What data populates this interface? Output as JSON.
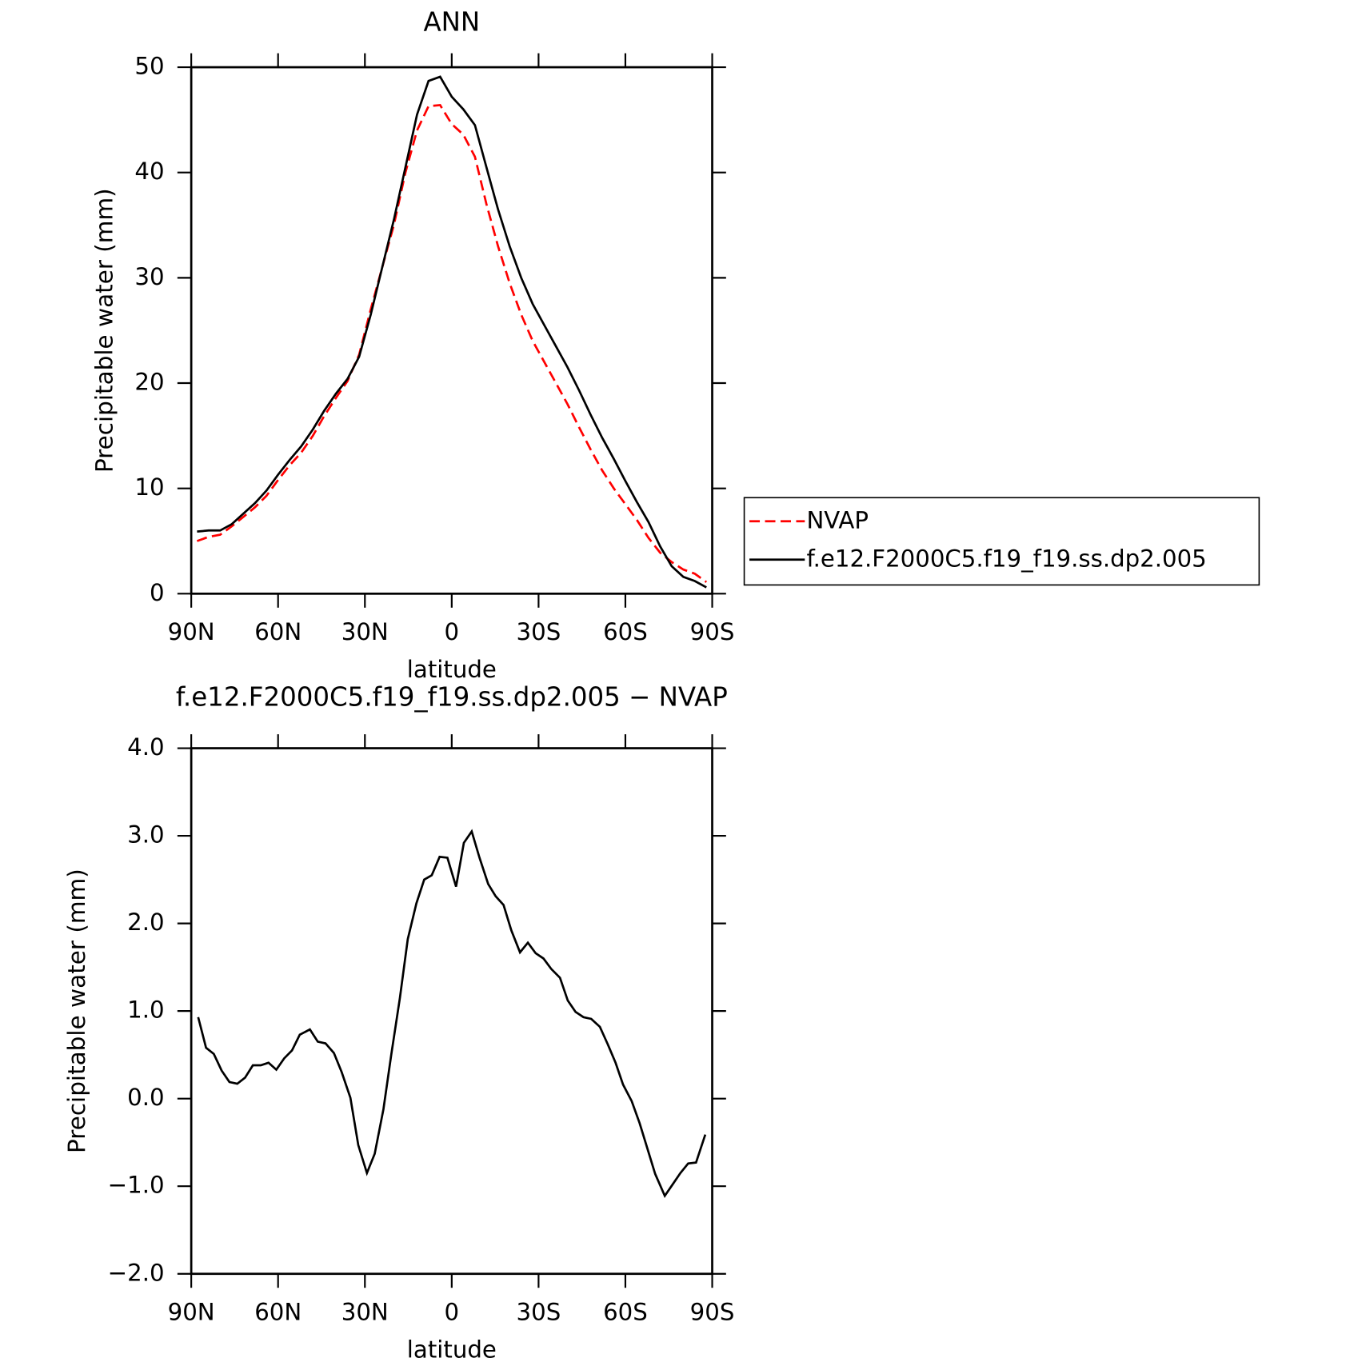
{
  "chart_data": [
    {
      "type": "line",
      "title": "ANN",
      "xlabel": "latitude",
      "ylabel": "Precipitable water (mm)",
      "x": [
        88,
        84,
        80,
        76,
        72,
        68,
        64,
        60,
        56,
        52,
        48,
        44,
        40,
        36,
        32,
        28,
        24,
        20,
        16,
        12,
        8,
        4,
        0,
        -4,
        -8,
        -12,
        -16,
        -20,
        -24,
        -28,
        -32,
        -36,
        -40,
        -44,
        -48,
        -52,
        -56,
        -60,
        -64,
        -68,
        -72,
        -76,
        -80,
        -84,
        -88
      ],
      "series": [
        {
          "name": "NVAP",
          "color": "#ff0000",
          "dash": true,
          "values": [
            5.0,
            5.4,
            5.6,
            6.4,
            7.3,
            8.2,
            9.3,
            10.8,
            12.2,
            13.4,
            15.0,
            16.9,
            18.6,
            20.2,
            22.7,
            27,
            31,
            35,
            40,
            44,
            46.3,
            46.4,
            44.6,
            43.6,
            41.5,
            37,
            33,
            29.5,
            26.5,
            24,
            22,
            20,
            18,
            15.8,
            13.7,
            11.7,
            10,
            8.5,
            7,
            5.3,
            3.9,
            3.0,
            2.3,
            1.9,
            1.1
          ]
        },
        {
          "name": "f.e12.F2000C5.f19_f19.ss.dp2.005",
          "color": "#000000",
          "dash": false,
          "values": [
            5.9,
            6.0,
            6.0,
            6.6,
            7.6,
            8.6,
            9.8,
            11.3,
            12.7,
            14.0,
            15.6,
            17.4,
            19.0,
            20.4,
            22.5,
            26.5,
            31,
            35.5,
            40.5,
            45.5,
            48.7,
            49.1,
            47.2,
            46.0,
            44.5,
            40.5,
            36.5,
            33,
            30,
            27.5,
            25.5,
            23.5,
            21.5,
            19.3,
            17,
            14.8,
            12.8,
            10.7,
            8.7,
            6.8,
            4.5,
            2.6,
            1.6,
            1.2,
            0.6
          ]
        }
      ],
      "xlim": [
        90,
        -90
      ],
      "xticks": [
        {
          "value": 90,
          "label": "90N"
        },
        {
          "value": 60,
          "label": "60N"
        },
        {
          "value": 30,
          "label": "30N"
        },
        0,
        {
          "value": -30,
          "label": "30S"
        },
        {
          "value": -60,
          "label": "60S"
        },
        {
          "value": -90,
          "label": "90S"
        }
      ],
      "ylim": [
        0,
        50
      ],
      "yticks": [
        0,
        10,
        20,
        30,
        40,
        50
      ],
      "legend": "right"
    },
    {
      "type": "line",
      "title": "f.e12.F2000C5.f19_f19.ss.dp2.005 − NVAP",
      "xlabel": "latitude",
      "ylabel": "Precipitable water (mm)",
      "x": [
        87.6,
        84.9,
        82.2,
        79.5,
        76.8,
        74.1,
        71.4,
        68.7,
        66.0,
        63.3,
        60.6,
        57.9,
        55.2,
        52.5,
        49.0,
        46.3,
        43.6,
        40.7,
        38.0,
        35.0,
        32.3,
        29.3,
        26.6,
        23.6,
        20.9,
        17.9,
        15.2,
        12.2,
        9.5,
        6.9,
        4.2,
        1.5,
        -1.5,
        -4.2,
        -6.9,
        -9.6,
        -12.6,
        -15.2,
        -17.9,
        -20.6,
        -23.6,
        -26.3,
        -29.0,
        -31.7,
        -34.4,
        -37.4,
        -40.1,
        -42.8,
        -45.5,
        -48.2,
        -51.2,
        -53.9,
        -56.6,
        -59.2,
        -62.2,
        -64.9,
        -67.6,
        -70.3,
        -73.6,
        -76.3,
        -79.0,
        -81.7,
        -84.4,
        -87.6
      ],
      "series": [
        {
          "color": "#000000",
          "dash": false,
          "values": [
            0.93,
            0.58,
            0.51,
            0.32,
            0.19,
            0.17,
            0.24,
            0.38,
            0.38,
            0.41,
            0.33,
            0.46,
            0.55,
            0.73,
            0.79,
            0.65,
            0.63,
            0.52,
            0.3,
            0.01,
            -0.53,
            -0.85,
            -0.63,
            -0.12,
            0.5,
            1.15,
            1.82,
            2.23,
            2.5,
            2.55,
            2.76,
            2.75,
            2.42,
            2.92,
            3.05,
            2.75,
            2.45,
            2.31,
            2.21,
            1.92,
            1.67,
            1.78,
            1.66,
            1.6,
            1.48,
            1.38,
            1.12,
            0.99,
            0.93,
            0.91,
            0.82,
            0.62,
            0.41,
            0.16,
            -0.03,
            -0.28,
            -0.57,
            -0.86,
            -1.11,
            -0.98,
            -0.85,
            -0.74,
            -0.73,
            -0.41
          ]
        }
      ],
      "xlim": [
        90,
        -90
      ],
      "xticks": [
        {
          "value": 90,
          "label": "90N"
        },
        {
          "value": 60,
          "label": "60N"
        },
        {
          "value": 30,
          "label": "30N"
        },
        0,
        {
          "value": -30,
          "label": "30S"
        },
        {
          "value": -60,
          "label": "60S"
        },
        {
          "value": -90,
          "label": "90S"
        }
      ],
      "ylim": [
        -2,
        4
      ],
      "yticks": [
        {
          "value": 4,
          "label": "4.0"
        },
        {
          "value": 3,
          "label": "3.0"
        },
        {
          "value": 2,
          "label": "2.0"
        },
        {
          "value": 1,
          "label": "1.0"
        },
        {
          "value": 0,
          "label": "0.0"
        },
        {
          "value": -1,
          "label": "−1.0"
        },
        {
          "value": -2,
          "label": "−2.0"
        }
      ]
    }
  ]
}
